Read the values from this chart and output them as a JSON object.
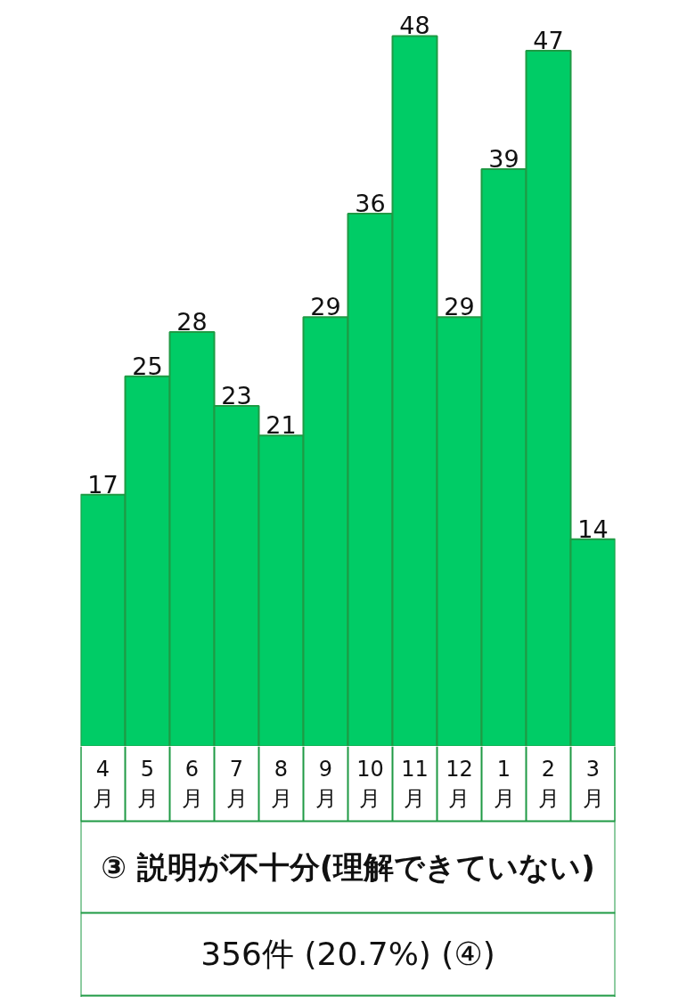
{
  "chart_data": {
    "type": "bar",
    "title": "③ 説明が不十分(理解できていない)",
    "subtitle": "356件 (20.7%) (④)",
    "categories": [
      "4月",
      "5月",
      "6月",
      "7月",
      "8月",
      "9月",
      "10月",
      "11月",
      "12月",
      "1月",
      "2月",
      "3月"
    ],
    "values": [
      17,
      25,
      28,
      23,
      21,
      29,
      36,
      48,
      29,
      39,
      47,
      14
    ],
    "color": "#00cc66",
    "data_labels": true
  }
}
